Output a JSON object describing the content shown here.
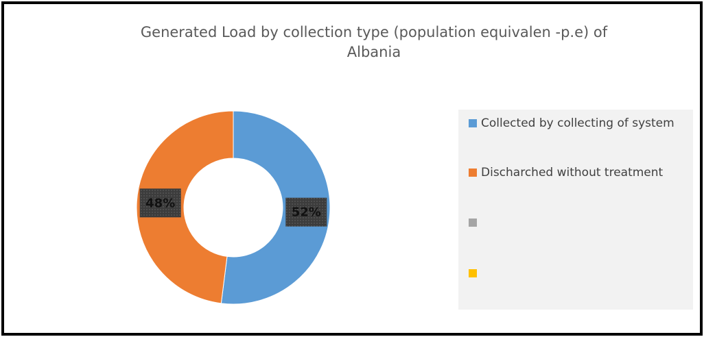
{
  "chart_data": {
    "type": "donut",
    "title": "Generated Load by collection type (population equivalen -p.e) of",
    "title_line2": "Albania",
    "categories": [
      "Collected by collecting of system",
      "Discharched without treatment",
      null,
      null
    ],
    "values": [
      52,
      48,
      0,
      0
    ],
    "value_labels": [
      "52%",
      "48%",
      null,
      null
    ],
    "colors": [
      "#5b9bd5",
      "#ed7d31",
      "#a5a5a5",
      "#ffc000"
    ],
    "legend": "right"
  }
}
